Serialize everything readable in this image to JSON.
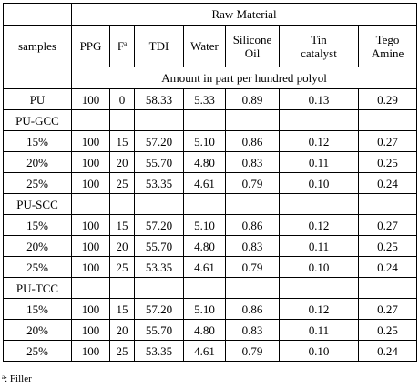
{
  "table": {
    "group_header": "Raw Material",
    "columns": {
      "samples": "samples",
      "ppg": "PPG",
      "f_base": "F",
      "f_sup": "a",
      "tdi": "TDI",
      "water": "Water",
      "silicone_line1": "Silicone",
      "silicone_line2": "Oil",
      "tin_line1": "Tin",
      "tin_line2": "catalyst",
      "tego_line1": "Tego",
      "tego_line2": "Amine"
    },
    "unit_row": "Amount in part per hundred polyol",
    "pu_row": [
      "PU",
      "100",
      "0",
      "58.33",
      "5.33",
      "0.89",
      "0.13",
      "0.29"
    ],
    "groups": [
      {
        "label": "PU-GCC",
        "rows": [
          [
            "15%",
            "100",
            "15",
            "57.20",
            "5.10",
            "0.86",
            "0.12",
            "0.27"
          ],
          [
            "20%",
            "100",
            "20",
            "55.70",
            "4.80",
            "0.83",
            "0.11",
            "0.25"
          ],
          [
            "25%",
            "100",
            "25",
            "53.35",
            "4.61",
            "0.79",
            "0.10",
            "0.24"
          ]
        ]
      },
      {
        "label": "PU-SCC",
        "rows": [
          [
            "15%",
            "100",
            "15",
            "57.20",
            "5.10",
            "0.86",
            "0.12",
            "0.27"
          ],
          [
            "20%",
            "100",
            "20",
            "55.70",
            "4.80",
            "0.83",
            "0.11",
            "0.25"
          ],
          [
            "25%",
            "100",
            "25",
            "53.35",
            "4.61",
            "0.79",
            "0.10",
            "0.24"
          ]
        ]
      },
      {
        "label": "PU-TCC",
        "rows": [
          [
            "15%",
            "100",
            "15",
            "57.20",
            "5.10",
            "0.86",
            "0.12",
            "0.27"
          ],
          [
            "20%",
            "100",
            "20",
            "55.70",
            "4.80",
            "0.83",
            "0.11",
            "0.25"
          ],
          [
            "25%",
            "100",
            "25",
            "53.35",
            "4.61",
            "0.79",
            "0.10",
            "0.24"
          ]
        ]
      }
    ]
  },
  "footnote": {
    "marker": "a",
    "text": ": Filler"
  }
}
